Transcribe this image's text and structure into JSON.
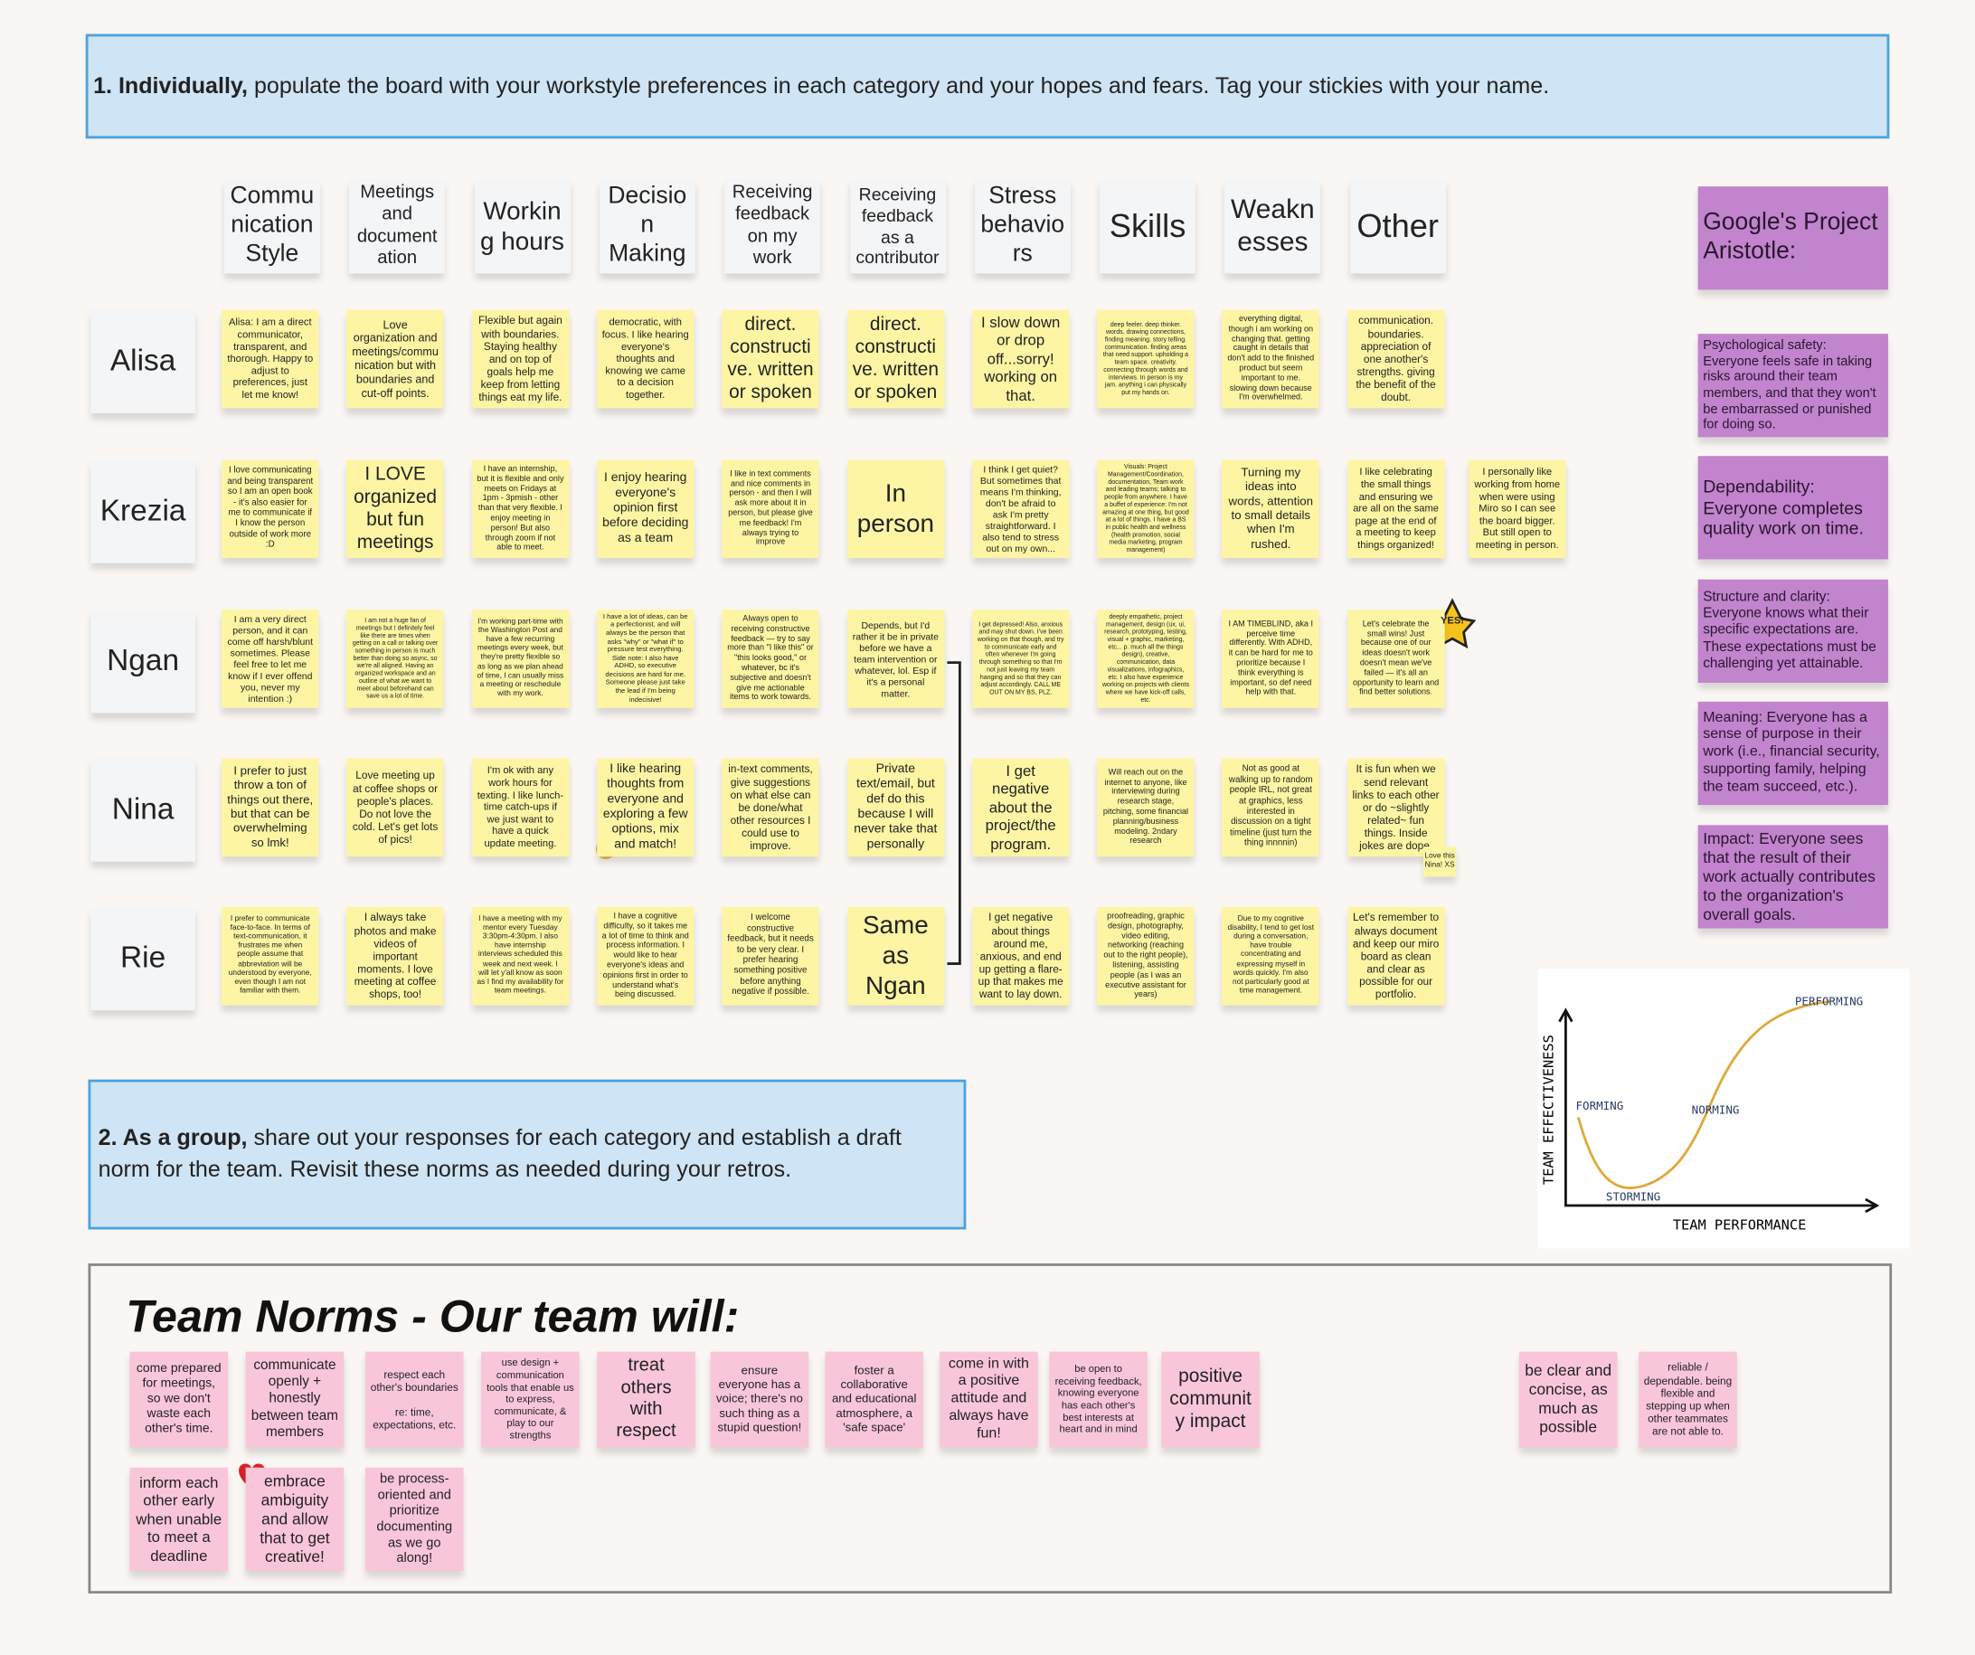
{
  "instructions": {
    "step1": {
      "bold": "1. Individually,",
      "text": "populate the board with your workstyle preferences in each category and your hopes and fears. Tag your stickies with your name."
    },
    "step2": {
      "bold": "2.  As a group,",
      "text": "share out your responses for each category and establish a draft norm for the team. Revisit these norms as needed during your retros."
    }
  },
  "columns": [
    "Communication Style",
    "Meetings and documentation",
    "Working hours",
    "Decision Making",
    "Receiving feedback on my work",
    "Receiving feedback as a contributor",
    "Stress behaviors",
    "Skills",
    "Weaknesses",
    "Other"
  ],
  "rows": [
    {
      "name": "Alisa",
      "cells": [
        "Alisa: I am a direct communicator, transparent, and thorough. Happy to adjust to preferences, just let me know!",
        "Love organization and meetings/communication but with boundaries and cut-off points.",
        "Flexible but again with boundaries. Staying healthy and on top of goals help me keep from letting things eat my life.",
        "democratic, with focus. I like hearing everyone's thoughts and knowing we came to a decision together.",
        "direct. constructive. written or spoken",
        "direct. constructive. written or spoken",
        "I slow down or drop off...sorry! working on that.",
        "deep feeler. deep thinker. words. drawing connections, finding meaning. story telling. communication. finding areas that need support. upholding a team space. creativity. connecting through words and interviews. In person is my jam. anything i can physically put my hands on.",
        "everything digital, though i am working on changing that. getting caught in details that don't add to the finished product but seem important to me. slowing down because I'm overwhelmed.",
        "communication. boundaries. appreciation of one another's strengths. giving the benefit of the doubt."
      ]
    },
    {
      "name": "Krezia",
      "cells": [
        "I love communicating and being transparent so I am an open book - it's also easier for me to communicate if I know the person outside of work more :D",
        "I LOVE organized but fun meetings",
        "I have an internship, but it is flexible and only meets on Fridays at 1pm - 3pmish - other than that very flexible. I enjoy meeting in person! But also through zoom if not able to meet.",
        "I enjoy hearing everyone's opinion first before deciding as a team",
        "I like in text comments and nice comments in person - and then I will ask more about it in person, but please give me feedback! I'm always trying to improve",
        "In person",
        "I think I get quiet? But sometimes that means I'm thinking, don't be afraid to ask I'm pretty straightforward. I also tend to stress out on my own...",
        "Visuals: Project Management/Coordination, documentation, Team work and leading teams; talking to people from anywhere. I have a buffet of experience: I'm not amazing at one thing, but good at a lot of things. I have a BS in public health and wellness (health promotion, social media marketing, program management)",
        "Turning my ideas into words, attention to small details when I'm rushed.",
        "I like celebrating the small things and ensuring we are all on the same page at the end of a meeting to keep things organized!"
      ],
      "extra": "I personally like working from home when were using Miro so I can see the board bigger. But still open to meeting in person."
    },
    {
      "name": "Ngan",
      "cells": [
        "I am a very direct person, and it can come off harsh/blunt sometimes. Please feel free to let me know if I ever offend you, never my intention :)",
        "I am not a huge fan of meetings but I definitely feel like there are times when getting on a call or talking over something in person is much better than doing so async, so we're all aligned. Having an organized workspace and an outline of what we want to meet about beforehand can save us a lot of time.",
        "I'm working part-time with the Washington Post and have a few recurring meetings every week, but they're pretty flexible so as long as we plan ahead of time, I can usually miss a meeting or reschedule with my work.",
        "I have a lot of ideas, can be a perfectionist, and will always be the person that asks \"why\" or \"what if\" to pressure test everything. Side note: I also have ADHD, so executive decisions are hard for me. Someone please just take the lead if I'm being indecisive!",
        "Always open to receiving constructive feedback — try to say more than \"I like this\" or \"this looks good,\" or whatever, bc it's subjective and doesn't give me actionable items to work towards.",
        "Depends, but I'd rather it be in private before we have a team intervention or whatever, lol. Esp if it's a personal matter.",
        "I get depressed! Also, anxious and may shut down. I've been working on that though, and try to communicate early and often whenever I'm going through something so that I'm not just leaving my team hanging and so that they can adjust accordingly. CALL ME OUT ON MY BS, PLZ.",
        "deeply empathetic, project management, design (ux, ui, research, prototyping, testing, visual + graphic, marketing, etc... p. much all the things design), creative, communication, data visualizations, infographics, etc. I also have experience working on projects with clients where we have kick-off calls, etc.",
        "I AM TIMEBLIND, aka I perceive time differently. With ADHD, it can be hard for me to prioritize because I think everything is important, so def need help with that.",
        "Let's celebrate the small wins! Just because one of our ideas doesn't work doesn't mean we've failed — it's all an opportunity to learn and find better solutions."
      ]
    },
    {
      "name": "Nina",
      "cells": [
        "I prefer to just throw a ton of things out there, but that can be overwhelming so lmk!",
        "Love meeting up at coffee shops or people's places. Do not love the cold. Let's get lots of pics!",
        "I'm ok with any work hours for texting. I like lunch-time catch-ups if we just want to have a quick update meeting.",
        "I like hearing thoughts from everyone and exploring a few options, mix and match!",
        "in-text comments, give suggestions on what else can be done/what other resources I could use to improve.",
        "Private text/email, but def do this because I will never take that personally",
        "I get negative about the project/the program.",
        "Will reach out on the internet to anyone, like interviewing during research stage, pitching, some financial planning/business modeling. 2ndary research",
        "Not as good at walking up to random people IRL, not great at graphics, less interested in discussion on a tight timeline (just turn the thing innnnin)",
        "It is fun when we send relevant links to each other or do ~slightly related~ fun things. Inside jokes are dope."
      ]
    },
    {
      "name": "Rie",
      "cells": [
        "I prefer to communicate face-to-face. In terms of text-communication, it frustrates me when people assume that abbreviation will be understood by everyone, even though I am not familiar with them.",
        "I always take photos and make videos of important moments. I love meeting at coffee shops, too!",
        "I have a meeting with my mentor every Tuesday 3:30pm-4:30pm. I also have internship interviews scheduled this week and next week. I will let y'all know as soon as I find my availability for team meetings.",
        "I have a cognitive difficulty, so it takes me a lot of time to think and process information. I would like to hear everyone's ideas and opinions first in order to understand what's being discussed.",
        "I welcome constructive feedback, but it needs to be very clear. I prefer hearing something positive before anything negative if possible.",
        "Same as Ngan",
        "I get negative about things around me, anxious, and end up getting a flare-up that makes me want to lay down.",
        "proofreading, graphic design, photography, video editing, networking (reaching out to the right people), listening, assisting people (as I was an executive assistant for years)",
        "Due to my cognitive disability, I tend to get lost during a conversation, have trouble concentrating and expressing myself in words quickly. I'm also not particularly good at time management.",
        "Let's remember to always document and keep our miro board as clean and clear as possible for our portfolio."
      ]
    }
  ],
  "annotations": {
    "star": "YES!",
    "nina_comment": "Love this Nina! XS"
  },
  "aristotle": {
    "title": "Google's Project Aristotle:",
    "items": [
      "Psychological safety: Everyone feels safe in taking risks around their team members, and that they won't be embarrassed or punished for doing so.",
      "Dependability: Everyone completes quality work on time.",
      "Structure and clarity: Everyone knows what their specific expectations are. These expectations must be challenging yet attainable.",
      "Meaning: Everyone has a sense of purpose in their work (i.e., financial security, supporting family, helping the team succeed, etc.).",
      "Impact: Everyone sees that the result of their work actually contributes to the organization's overall goals."
    ]
  },
  "tuckman": {
    "y_axis": "TEAM EFFECTIVENESS",
    "x_axis": "TEAM PERFORMANCE",
    "stages": [
      "FORMING",
      "STORMING",
      "NORMING",
      "PERFORMING"
    ]
  },
  "team_norms": {
    "title": "Team Norms - Our team will:",
    "notes": [
      "come prepared for meetings, so we don't waste each other's time.",
      "communicate openly + honestly between team members",
      "respect each other's boundaries\n\nre: time, expectations, etc.",
      "use design + communication tools that enable us to express, communicate, & play to our strengths",
      "treat others with respect",
      "ensure everyone has a voice; there's no such thing as a stupid question!",
      "foster a collaborative and educational atmosphere, a 'safe space'",
      "come in with a positive attitude and always have fun!",
      "be open to receiving feedback, knowing everyone has each other's best interests at heart and in mind",
      "positive community impact",
      "be clear and concise, as much as possible",
      "reliable / dependable. being flexible and stepping up when other teammates are not able to.",
      "inform each other early when unable to meet a deadline",
      "embrace ambiguity and allow that to get creative!",
      "be process-oriented and prioritize documenting as we go along!"
    ]
  }
}
